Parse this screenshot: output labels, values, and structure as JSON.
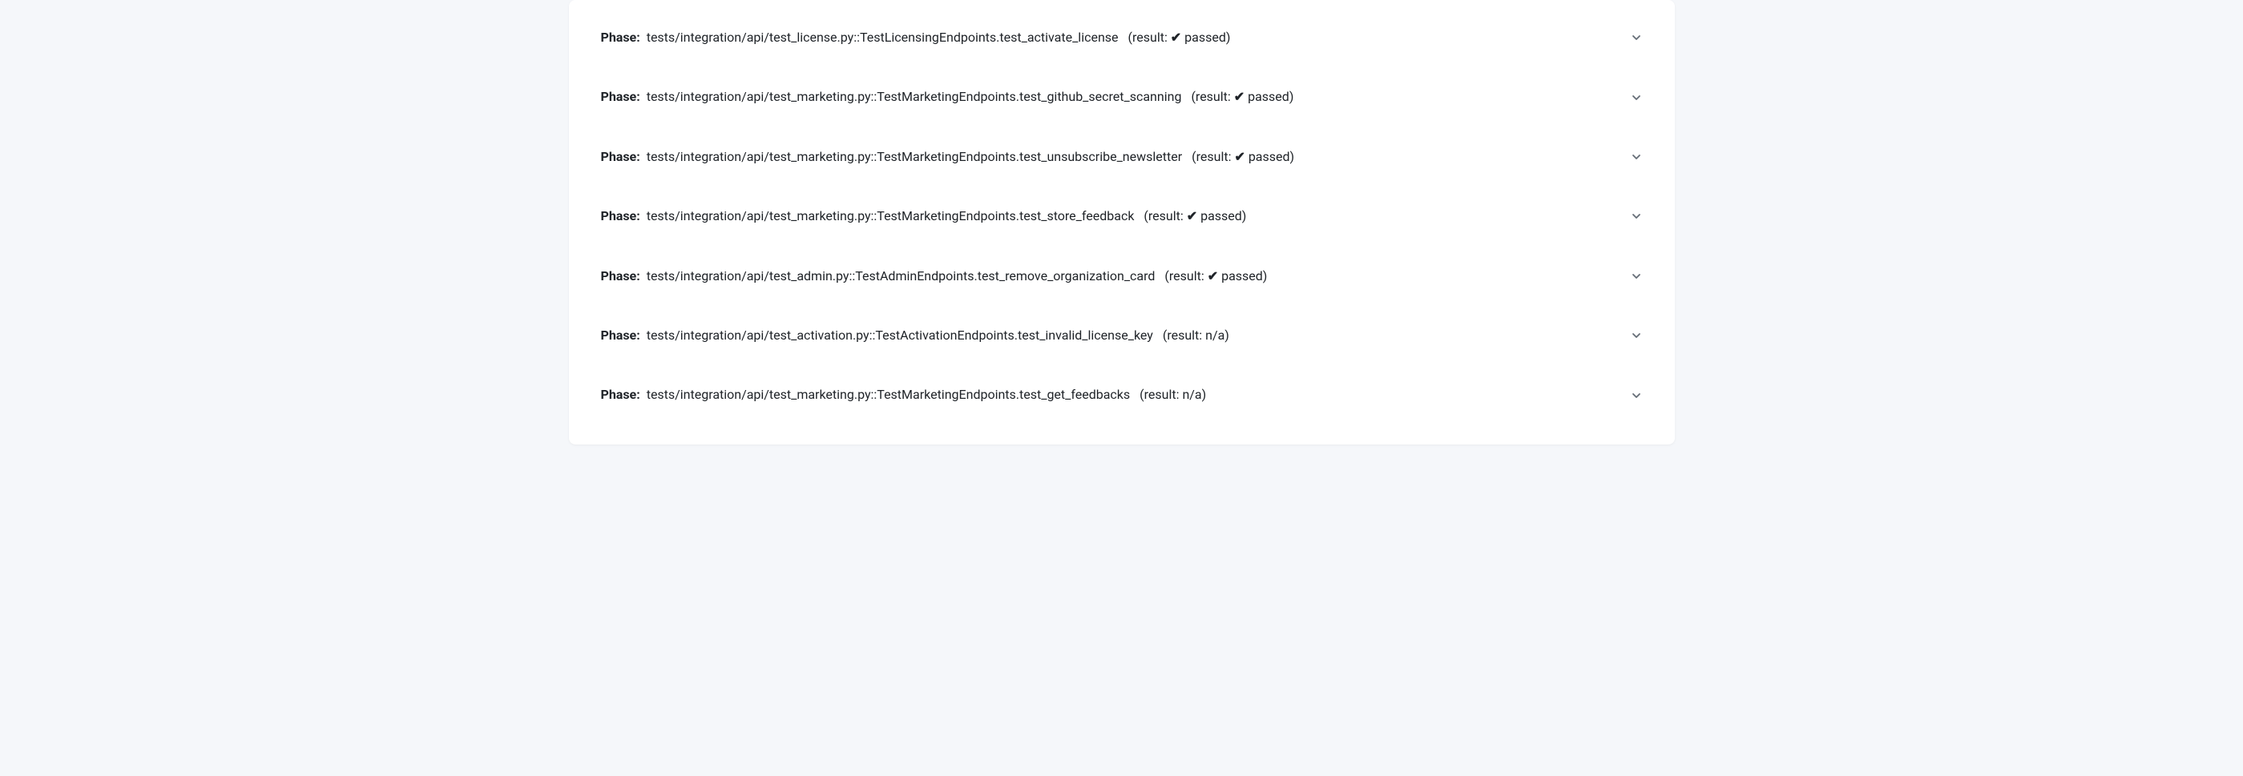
{
  "label": "Phase:",
  "resultPrefix": "(result: ",
  "resultSuffix": ")",
  "passedText": "passed",
  "naText": "n/a",
  "checkGlyph": "✔",
  "lineFontSize": 16,
  "colors": {
    "pageBackground": "#f5f7fa",
    "cardBackground": "#ffffff",
    "text": "#1f2328",
    "chevron": "#656d76"
  },
  "phases": [
    {
      "path": "tests/integration/api/test_license.py::TestLicensingEndpoints.test_activate_license",
      "status": "passed"
    },
    {
      "path": "tests/integration/api/test_marketing.py::TestMarketingEndpoints.test_github_secret_scanning",
      "status": "passed"
    },
    {
      "path": "tests/integration/api/test_marketing.py::TestMarketingEndpoints.test_unsubscribe_newsletter",
      "status": "passed"
    },
    {
      "path": "tests/integration/api/test_marketing.py::TestMarketingEndpoints.test_store_feedback",
      "status": "passed"
    },
    {
      "path": "tests/integration/api/test_admin.py::TestAdminEndpoints.test_remove_organization_card",
      "status": "passed"
    },
    {
      "path": "tests/integration/api/test_activation.py::TestActivationEndpoints.test_invalid_license_key",
      "status": "na"
    },
    {
      "path": "tests/integration/api/test_marketing.py::TestMarketingEndpoints.test_get_feedbacks",
      "status": "na"
    }
  ]
}
